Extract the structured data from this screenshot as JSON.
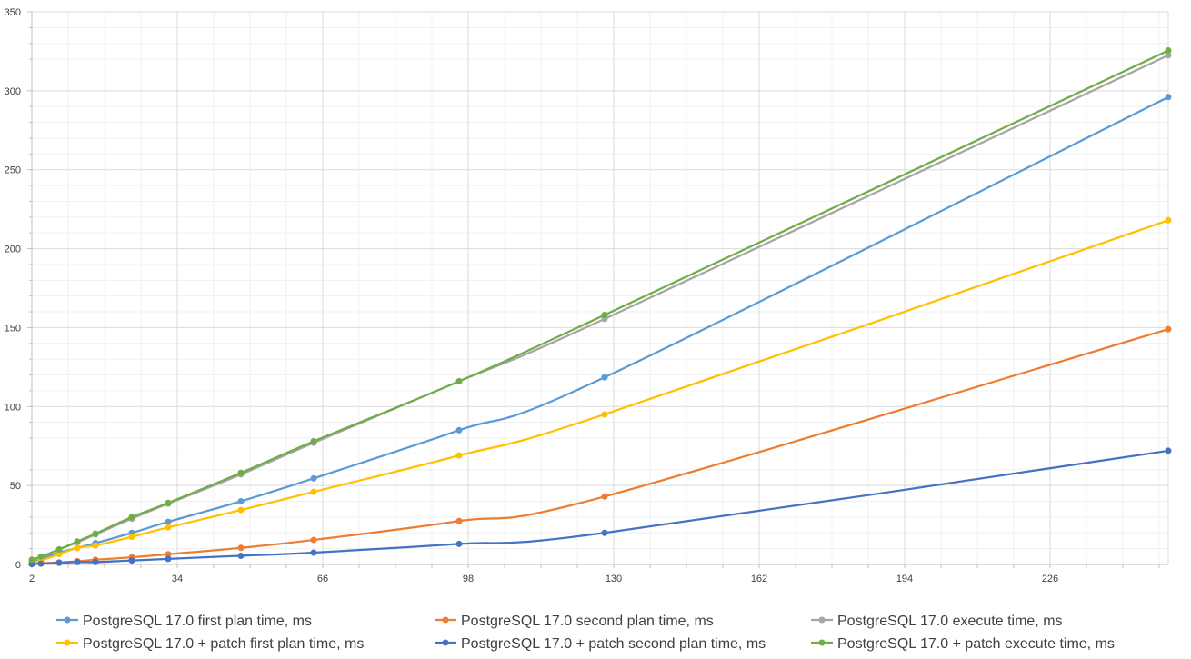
{
  "chart_data": {
    "type": "line",
    "title": "",
    "xlabel": "",
    "ylabel": "",
    "xlim": [
      2,
      252
    ],
    "ylim": [
      0,
      350
    ],
    "x_ticks": [
      2,
      34,
      66,
      98,
      130,
      162,
      194,
      226
    ],
    "y_ticks": [
      0,
      50,
      100,
      150,
      200,
      250,
      300,
      350
    ],
    "grid": true,
    "smooth": true,
    "legend_position": "bottom",
    "x": [
      2,
      4,
      8,
      12,
      16,
      24,
      32,
      48,
      64,
      96,
      128,
      252
    ],
    "series": [
      {
        "name": "PostgreSQL 17.0 first plan time, ms",
        "color": "#5B9BD5",
        "values": [
          1,
          3.5,
          7.5,
          10.5,
          13.5,
          20,
          27,
          40,
          54.5,
          85,
          118.5,
          296
        ]
      },
      {
        "name": "PostgreSQL 17.0 second plan time, ms",
        "color": "#ED7D31",
        "values": [
          0.3,
          0.7,
          1.3,
          2,
          3,
          4.5,
          6.5,
          10.5,
          15.5,
          27.5,
          43,
          149
        ]
      },
      {
        "name": "PostgreSQL 17.0 execute time, ms",
        "color": "#A5A5A5",
        "values": [
          2.5,
          4.5,
          9.5,
          14,
          19,
          29,
          38.5,
          57,
          77,
          116,
          155.5,
          322.5
        ]
      },
      {
        "name": "PostgreSQL 17.0 + patch first plan time, ms",
        "color": "#FFC000",
        "values": [
          0.8,
          2.5,
          6.5,
          10.5,
          12,
          17.5,
          23.5,
          34.5,
          46,
          69,
          95,
          218
        ]
      },
      {
        "name": "PostgreSQL 17.0 + patch second plan time, ms",
        "color": "#4472C4",
        "values": [
          0.2,
          0.5,
          1,
          1.5,
          1.5,
          2.5,
          3.5,
          5.5,
          7.5,
          13,
          20,
          72
        ]
      },
      {
        "name": "PostgreSQL 17.0 + patch execute time, ms",
        "color": "#70AD47",
        "values": [
          3,
          5,
          9.5,
          14.5,
          19.5,
          30,
          39,
          58,
          78,
          116,
          158,
          325.5
        ]
      }
    ]
  }
}
